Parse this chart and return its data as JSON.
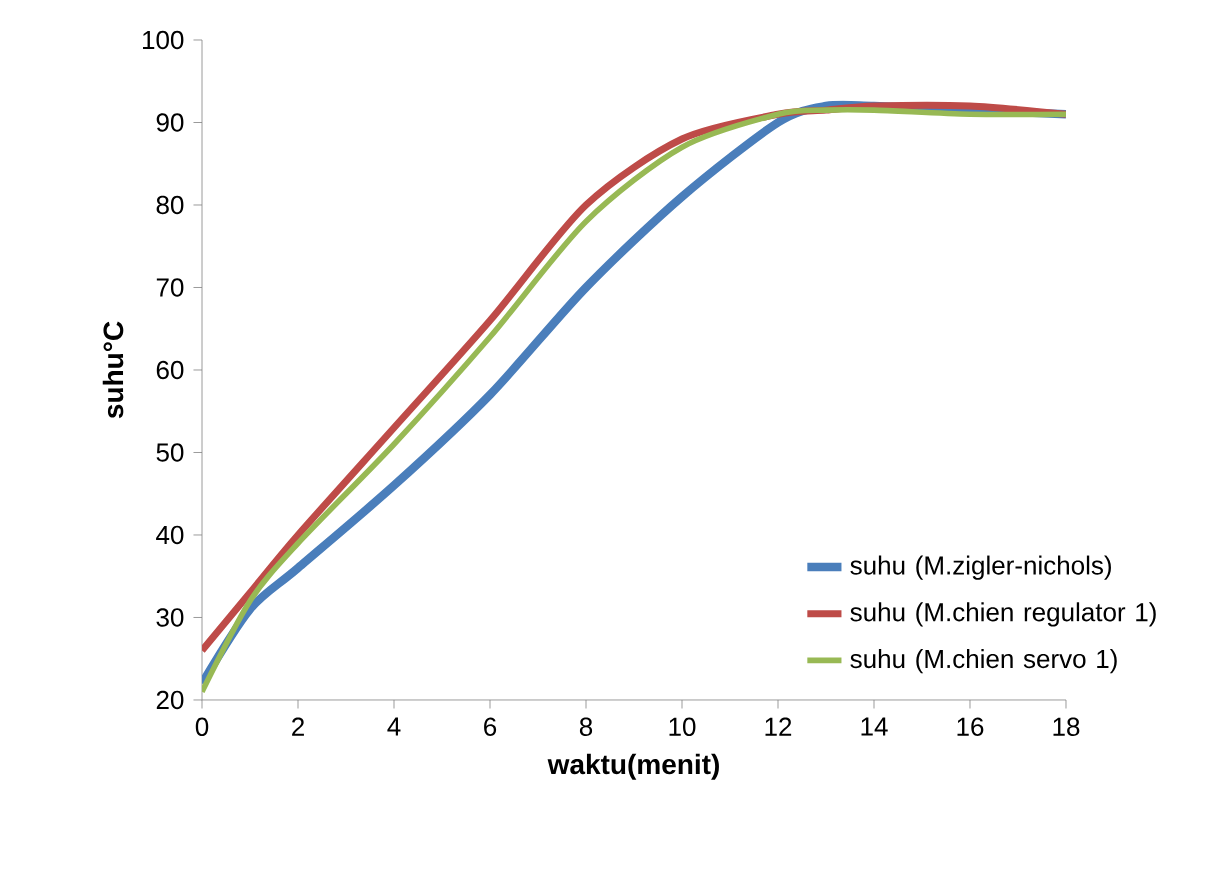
{
  "chart_data": {
    "type": "line",
    "xlabel": "waktu(menit)",
    "ylabel": "suhu°C",
    "x": [
      0,
      1,
      2,
      4,
      6,
      8,
      10,
      12,
      13,
      14,
      16,
      18
    ],
    "series": [
      {
        "name": "suhu (M.zigler-nichols)",
        "color": "#4a7ebb",
        "values": [
          22,
          31,
          36,
          46,
          57,
          70,
          81,
          90,
          92,
          92,
          91.5,
          91
        ]
      },
      {
        "name": "suhu (M.chien regulator 1)",
        "color": "#be4b48",
        "values": [
          26,
          33,
          40,
          53,
          66,
          80,
          88,
          91,
          91.5,
          92,
          92,
          91
        ]
      },
      {
        "name": "suhu (M.chien servo 1)",
        "color": "#98b954",
        "values": [
          21,
          32,
          39,
          51,
          64,
          78,
          87,
          91,
          91.5,
          91.5,
          91,
          91
        ]
      }
    ],
    "xlim": [
      0,
      18
    ],
    "xticks": [
      0,
      2,
      4,
      6,
      8,
      10,
      12,
      14,
      16,
      18
    ],
    "ylim": [
      20,
      100
    ],
    "yticks": [
      20,
      30,
      40,
      50,
      60,
      70,
      80,
      90,
      100
    ],
    "legend": "right",
    "grid": false,
    "marker": "none",
    "line_style": "solid"
  }
}
